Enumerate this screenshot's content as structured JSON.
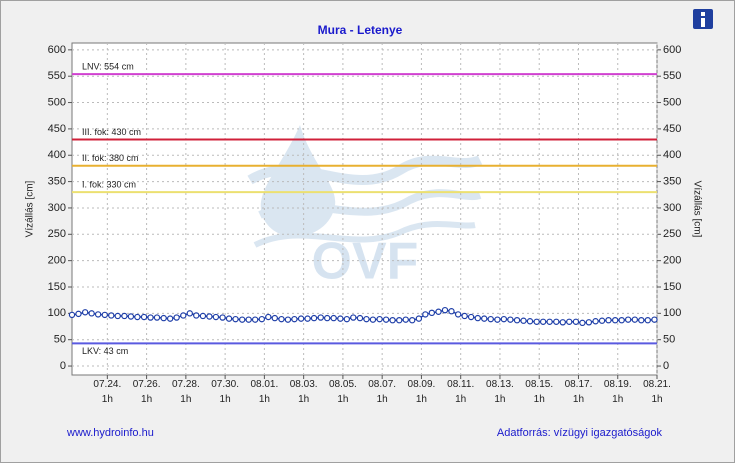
{
  "chart_data": {
    "type": "line",
    "title": "Mura - Letenye",
    "y_label": "Vízállás [cm]",
    "y2_label": "Vízállás [cm]",
    "watermark": "OVF",
    "footer_left": "www.hydroinfo.hu",
    "footer_right": "Adatforrás: vízügyi igazgatóságok",
    "color": "#1f3fa8",
    "grid": true,
    "xlim": [
      0,
      29.8
    ],
    "xticks": [
      {
        "value": 1.8,
        "label": "07.24.\n1h"
      },
      {
        "value": 3.8,
        "label": "07.26.\n1h"
      },
      {
        "value": 5.8,
        "label": "07.28.\n1h"
      },
      {
        "value": 7.8,
        "label": "07.30.\n1h"
      },
      {
        "value": 9.8,
        "label": "08.01.\n1h"
      },
      {
        "value": 11.8,
        "label": "08.03.\n1h"
      },
      {
        "value": 13.8,
        "label": "08.05.\n1h"
      },
      {
        "value": 15.8,
        "label": "08.07.\n1h"
      },
      {
        "value": 17.8,
        "label": "08.09.\n1h"
      },
      {
        "value": 19.8,
        "label": "08.11.\n1h"
      },
      {
        "value": 21.8,
        "label": "08.13.\n1h"
      },
      {
        "value": 23.8,
        "label": "08.15.\n1h"
      },
      {
        "value": 25.8,
        "label": "08.17.\n1h"
      },
      {
        "value": 27.8,
        "label": "08.19.\n1h"
      },
      {
        "value": 29.8,
        "label": "08.21.\n1h"
      }
    ],
    "ylim": [
      -17,
      613
    ],
    "yticks": [
      0,
      50,
      100,
      150,
      200,
      250,
      300,
      350,
      400,
      450,
      500,
      550,
      600
    ],
    "y2lim": [
      -17,
      613
    ],
    "y2ticks": [
      0,
      50,
      100,
      150,
      200,
      250,
      300,
      350,
      400,
      450,
      500,
      550,
      600
    ],
    "reference_lines": [
      {
        "label": "LNV: 554 cm",
        "value": 554,
        "color": "#d040d0"
      },
      {
        "label": "III. fok: 430 cm",
        "value": 430,
        "color": "#d0203a"
      },
      {
        "label": "II. fok: 380 cm",
        "value": 380,
        "color": "#e8b030"
      },
      {
        "label": "I. fok: 330 cm",
        "value": 330,
        "color": "#ece070"
      },
      {
        "label": "LKV: 43 cm",
        "value": 43,
        "color": "#5a5ae0"
      }
    ],
    "x": [
      0,
      0.33,
      0.67,
      1,
      1.33,
      1.67,
      2,
      2.33,
      2.67,
      3,
      3.33,
      3.67,
      4,
      4.33,
      4.67,
      5,
      5.33,
      5.67,
      6,
      6.33,
      6.67,
      7,
      7.33,
      7.67,
      8,
      8.33,
      8.67,
      9,
      9.33,
      9.67,
      10,
      10.33,
      10.67,
      11,
      11.33,
      11.67,
      12,
      12.33,
      12.67,
      13,
      13.33,
      13.67,
      14,
      14.33,
      14.67,
      15,
      15.33,
      15.67,
      16,
      16.33,
      16.67,
      17,
      17.33,
      17.67,
      18,
      18.33,
      18.67,
      19,
      19.33,
      19.67,
      20,
      20.33,
      20.67,
      21,
      21.33,
      21.67,
      22,
      22.33,
      22.67,
      23,
      23.33,
      23.67,
      24,
      24.33,
      24.67,
      25,
      25.33,
      25.67,
      26,
      26.33,
      26.67,
      27,
      27.33,
      27.67,
      28,
      28.33,
      28.67,
      29,
      29.33,
      29.67
    ],
    "values": [
      97,
      99,
      102,
      100,
      98,
      97,
      96,
      95,
      95,
      94,
      93,
      93,
      92,
      92,
      91,
      90,
      92,
      96,
      100,
      96,
      95,
      94,
      93,
      92,
      90,
      89,
      88,
      88,
      88,
      89,
      93,
      91,
      89,
      88,
      89,
      90,
      90,
      91,
      92,
      91,
      91,
      90,
      89,
      92,
      91,
      89,
      88,
      89,
      88,
      87,
      87,
      88,
      87,
      90,
      98,
      101,
      103,
      106,
      104,
      98,
      95,
      93,
      91,
      90,
      89,
      88,
      89,
      88,
      87,
      86,
      85,
      84,
      84,
      84,
      84,
      83,
      84,
      84,
      82,
      83,
      85,
      86,
      87,
      87,
      87,
      88,
      88,
      87,
      87,
      88
    ]
  }
}
